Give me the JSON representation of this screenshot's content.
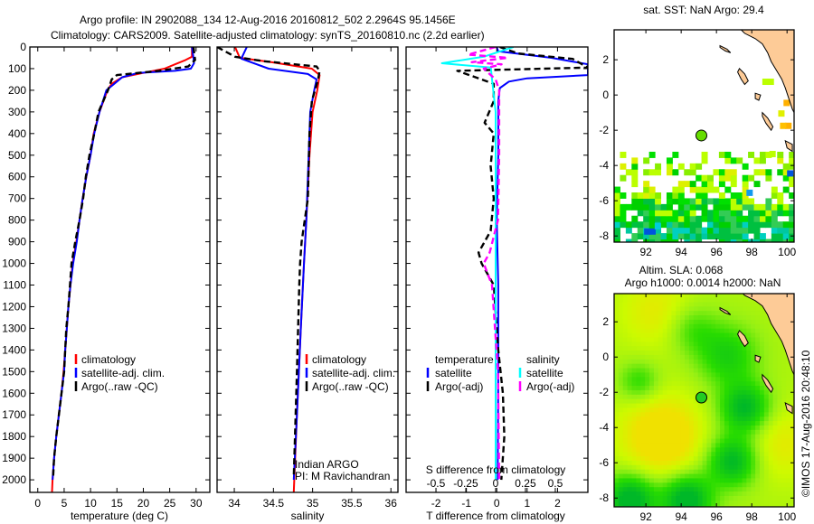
{
  "header": {
    "line1": "Argo profile: IN 2902088_134 12-Aug-2016 20160812_502 2.2964S 95.1456E",
    "line2": "Climatology: CARS2009. Satellite-adjusted climatology: synTS_20160810.nc (2.2d earlier)"
  },
  "credits": {
    "program": "Indian ARGO",
    "pi": "PI: M Ravichandran",
    "stamp": "©IMOS 17-Aug-2016 20:48:10"
  },
  "legends": {
    "temperature": [
      "climatology",
      "satellite-adj. clim.",
      "Argo(..raw -QC)"
    ],
    "salinity": [
      "climatology",
      "satellite-adj. clim.",
      "Argo(..raw -QC)"
    ],
    "difference": {
      "temp_header": "temperature",
      "sal_header": "salinity",
      "temp_items": [
        "satellite",
        "Argo(-adj)"
      ],
      "sal_items": [
        "satellite",
        "Argo(-adj)"
      ]
    }
  },
  "colors": {
    "climatology": "#ff0000",
    "satellite": "#0000ff",
    "argo": "#000000",
    "sal_satellite": "#00ffff",
    "sal_argo": "#ff00ff",
    "land": "#fdcb97"
  },
  "chart_data": [
    {
      "type": "line",
      "id": "temperature",
      "xlabel": "temperature (deg C)",
      "ylabel": "",
      "xlim": [
        -1.5,
        32.6
      ],
      "ylim": [
        0,
        2058
      ],
      "xticks": [
        "0",
        "5",
        "10",
        "15",
        "20",
        "25",
        "30"
      ],
      "yticks": [
        "0",
        "100",
        "200",
        "300",
        "400",
        "500",
        "600",
        "700",
        "800",
        "900",
        "1000",
        "1100",
        "1200",
        "1300",
        "1400",
        "1500",
        "1600",
        "1700",
        "1800",
        "1900",
        "2000"
      ],
      "series": [
        {
          "name": "climatology",
          "color": "#ff0000",
          "dashed": false,
          "points": [
            [
              29.2,
              0
            ],
            [
              29.2,
              45
            ],
            [
              28.0,
              60
            ],
            [
              26.0,
              80
            ],
            [
              24.0,
              100
            ],
            [
              20.0,
              120
            ],
            [
              16.0,
              140
            ],
            [
              14.0,
              170
            ],
            [
              13.2,
              200
            ],
            [
              11.7,
              300
            ],
            [
              10.6,
              400
            ],
            [
              10.0,
              500
            ],
            [
              9.2,
              600
            ],
            [
              8.5,
              700
            ],
            [
              7.9,
              800
            ],
            [
              7.3,
              900
            ],
            [
              6.6,
              1000
            ],
            [
              6.2,
              1100
            ],
            [
              5.8,
              1200
            ],
            [
              5.5,
              1300
            ],
            [
              5.2,
              1400
            ],
            [
              4.9,
              1500
            ],
            [
              4.5,
              1600
            ],
            [
              4.0,
              1700
            ],
            [
              3.5,
              1800
            ],
            [
              3.1,
              1900
            ],
            [
              2.8,
              2000
            ],
            [
              2.7,
              2058
            ]
          ]
        },
        {
          "name": "satellite-adj. clim.",
          "color": "#0000ff",
          "dashed": false,
          "points": [
            [
              29.2,
              0
            ],
            [
              29.5,
              50
            ],
            [
              29.6,
              75
            ],
            [
              29.0,
              100
            ],
            [
              26.0,
              110
            ],
            [
              19.0,
              120
            ],
            [
              16.0,
              140
            ],
            [
              14.5,
              170
            ],
            [
              13.0,
              200
            ],
            [
              11.7,
              300
            ],
            [
              10.7,
              400
            ],
            [
              10.0,
              500
            ],
            [
              9.2,
              600
            ],
            [
              8.5,
              700
            ],
            [
              7.9,
              800
            ],
            [
              7.4,
              900
            ],
            [
              6.7,
              1000
            ],
            [
              6.2,
              1100
            ],
            [
              5.8,
              1200
            ],
            [
              5.5,
              1300
            ],
            [
              5.2,
              1400
            ],
            [
              5.0,
              1500
            ],
            [
              4.5,
              1600
            ],
            [
              4.0,
              1700
            ],
            [
              3.5,
              1800
            ],
            [
              3.1,
              1900
            ],
            [
              2.8,
              2000
            ]
          ]
        },
        {
          "name": "Argo(..raw -QC)",
          "color": "#000000",
          "dashed": true,
          "points": [
            [
              29.5,
              0
            ],
            [
              29.8,
              60
            ],
            [
              28.5,
              90
            ],
            [
              23.0,
              110
            ],
            [
              15.0,
              130
            ],
            [
              14.0,
              150
            ],
            [
              13.3,
              200
            ],
            [
              11.5,
              300
            ],
            [
              10.7,
              400
            ],
            [
              9.8,
              500
            ],
            [
              9.1,
              600
            ],
            [
              8.6,
              700
            ],
            [
              7.9,
              800
            ],
            [
              7.1,
              900
            ],
            [
              6.4,
              1000
            ],
            [
              6.1,
              1100
            ],
            [
              5.8,
              1200
            ],
            [
              5.4,
              1300
            ],
            [
              5.2,
              1400
            ],
            [
              5.0,
              1500
            ],
            [
              4.5,
              1600
            ],
            [
              4.0,
              1700
            ],
            [
              3.5,
              1800
            ],
            [
              3.1,
              1900
            ],
            [
              2.9,
              1990
            ]
          ]
        }
      ]
    },
    {
      "type": "line",
      "id": "salinity",
      "xlabel": "salinity",
      "ylabel": "",
      "xlim": [
        33.78,
        36.09
      ],
      "ylim": [
        0,
        2058
      ],
      "xticks": [
        "34",
        "34.5",
        "35",
        "35.5",
        "36"
      ],
      "series": [
        {
          "name": "climatology",
          "color": "#ff0000",
          "dashed": false,
          "points": [
            [
              34.01,
              0
            ],
            [
              34.07,
              50
            ],
            [
              34.47,
              70
            ],
            [
              34.99,
              100
            ],
            [
              35.09,
              130
            ],
            [
              35.06,
              200
            ],
            [
              35.0,
              300
            ],
            [
              34.96,
              500
            ],
            [
              34.92,
              800
            ],
            [
              34.89,
              1000
            ],
            [
              34.85,
              1300
            ],
            [
              34.8,
              1700
            ],
            [
              34.76,
              2058
            ]
          ]
        },
        {
          "name": "satellite-adj. clim.",
          "color": "#0000ff",
          "dashed": false,
          "points": [
            [
              34.16,
              0
            ],
            [
              34.09,
              54
            ],
            [
              34.44,
              100
            ],
            [
              34.94,
              125
            ],
            [
              35.05,
              150
            ],
            [
              35.02,
              200
            ],
            [
              34.97,
              300
            ],
            [
              34.95,
              500
            ],
            [
              34.92,
              800
            ],
            [
              34.89,
              1000
            ],
            [
              34.85,
              1300
            ],
            [
              34.8,
              1700
            ],
            [
              34.76,
              2000
            ]
          ]
        },
        {
          "name": "Argo(..raw -QC)",
          "color": "#000000",
          "dashed": true,
          "points": [
            [
              33.78,
              0
            ],
            [
              34.01,
              45
            ],
            [
              34.36,
              65
            ],
            [
              35.05,
              90
            ],
            [
              35.09,
              110
            ],
            [
              35.07,
              150
            ],
            [
              34.99,
              250
            ],
            [
              34.96,
              400
            ],
            [
              34.94,
              700
            ],
            [
              34.86,
              900
            ],
            [
              34.84,
              1000
            ],
            [
              34.83,
              1100
            ],
            [
              34.8,
              1500
            ],
            [
              34.76,
              1990
            ]
          ]
        }
      ]
    },
    {
      "type": "line",
      "id": "difference",
      "xlabel": "T difference from climatology",
      "x2label": "S difference from climatology",
      "ylabel": "",
      "xlim": [
        -2.985,
        3.0
      ],
      "x2lim": [
        -0.75,
        0.773
      ],
      "ylim": [
        0,
        2058
      ],
      "xticks": [
        "-2",
        "-1",
        "0",
        "1",
        "2"
      ],
      "x2ticks": [
        "-0.5",
        "-0.25",
        "0",
        "0.25",
        "0.5"
      ],
      "series": [
        {
          "name": "T satellite",
          "axis": "T",
          "color": "#0000ff",
          "dashed": false,
          "points": [
            [
              0,
              0
            ],
            [
              0.05,
              20
            ],
            [
              1.8,
              50
            ],
            [
              3.0,
              80
            ],
            [
              3.0,
              130
            ],
            [
              1.0,
              145
            ],
            [
              0.4,
              160
            ],
            [
              0.1,
              190
            ],
            [
              0.05,
              250
            ],
            [
              0.05,
              500
            ],
            [
              0.0,
              800
            ],
            [
              0.05,
              1100
            ],
            [
              0.05,
              1500
            ],
            [
              0.03,
              2000
            ]
          ]
        },
        {
          "name": "T Argo(-adj)",
          "axis": "T",
          "color": "#000000",
          "dashed": true,
          "points": [
            [
              0.1,
              0
            ],
            [
              0.7,
              30
            ],
            [
              2.5,
              55
            ],
            [
              3.0,
              95
            ],
            [
              -1.3,
              110
            ],
            [
              -0.7,
              140
            ],
            [
              -0.1,
              170
            ],
            [
              -0.1,
              250
            ],
            [
              -0.4,
              350
            ],
            [
              -0.1,
              400
            ],
            [
              -0.2,
              550
            ],
            [
              -0.1,
              700
            ],
            [
              -0.2,
              850
            ],
            [
              -0.6,
              950
            ],
            [
              -0.5,
              1000
            ],
            [
              -0.1,
              1100
            ],
            [
              0.05,
              1400
            ],
            [
              0.2,
              1600
            ],
            [
              0.25,
              1800
            ],
            [
              0.15,
              2000
            ]
          ]
        },
        {
          "name": "S satellite",
          "axis": "S",
          "color": "#00ffff",
          "dashed": false,
          "points": [
            [
              0.15,
              0
            ],
            [
              -0.1,
              45
            ],
            [
              -0.45,
              75
            ],
            [
              -0.04,
              95
            ],
            [
              -0.03,
              150
            ],
            [
              0.0,
              300
            ],
            [
              0.0,
              1000
            ],
            [
              0.0,
              2000
            ]
          ]
        },
        {
          "name": "S Argo(-adj)",
          "axis": "S",
          "color": "#ff00ff",
          "dashed": true,
          "points": [
            [
              0.0,
              0
            ],
            [
              -0.23,
              35
            ],
            [
              0.1,
              50
            ],
            [
              -0.2,
              70
            ],
            [
              0.05,
              80
            ],
            [
              -0.1,
              100
            ],
            [
              0.0,
              150
            ],
            [
              0.03,
              200
            ],
            [
              0.03,
              500
            ],
            [
              0.02,
              800
            ],
            [
              -0.05,
              950
            ],
            [
              -0.1,
              1000
            ],
            [
              -0.03,
              1100
            ],
            [
              0.02,
              1500
            ],
            [
              0.03,
              2000
            ]
          ]
        }
      ]
    },
    {
      "type": "heatmap",
      "id": "sst-map",
      "title": "sat. SST: NaN Argo: 29.4",
      "xlim": [
        90.2,
        100.4
      ],
      "ylim": [
        -8.35,
        3.7
      ],
      "xticks": [
        "92",
        "94",
        "96",
        "98",
        "100"
      ],
      "yticks": [
        "2",
        "0",
        "-2",
        "-4",
        "-6",
        "-8"
      ],
      "float_position": {
        "lon": 95.1456,
        "lat": -2.2964
      }
    },
    {
      "type": "heatmap",
      "id": "sla-map",
      "title": "Altim. SLA: 0.068",
      "subtitle": "Argo h1000: 0.0014 h2000: NaN",
      "xlim": [
        90.2,
        100.4
      ],
      "ylim": [
        -8.5,
        3.6
      ],
      "xticks": [
        "92",
        "94",
        "96",
        "98",
        "100"
      ],
      "yticks": [
        "2",
        "0",
        "-2",
        "-4",
        "-6",
        "-8"
      ],
      "float_position": {
        "lon": 95.1456,
        "lat": -2.2964
      }
    }
  ]
}
